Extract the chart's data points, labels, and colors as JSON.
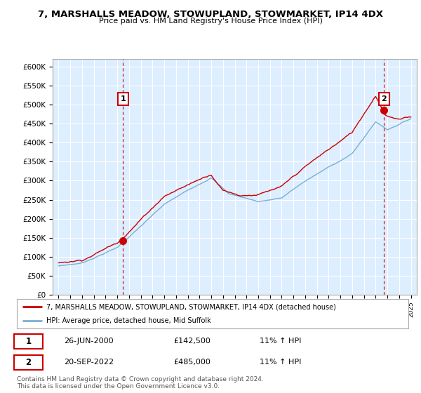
{
  "title": "7, MARSHALLS MEADOW, STOWUPLAND, STOWMARKET, IP14 4DX",
  "subtitle": "Price paid vs. HM Land Registry's House Price Index (HPI)",
  "legend_line1": "7, MARSHALLS MEADOW, STOWUPLAND, STOWMARKET, IP14 4DX (detached house)",
  "legend_line2": "HPI: Average price, detached house, Mid Suffolk",
  "row1_date": "26-JUN-2000",
  "row1_price": "£142,500",
  "row1_hpi": "11% ↑ HPI",
  "row2_date": "20-SEP-2022",
  "row2_price": "£485,000",
  "row2_hpi": "11% ↑ HPI",
  "footer": "Contains HM Land Registry data © Crown copyright and database right 2024.\nThis data is licensed under the Open Government Licence v3.0.",
  "ylim_min": 0,
  "ylim_max": 620000,
  "sale1_year": 2000.5,
  "sale1_price": 142500,
  "sale2_year": 2022.72,
  "sale2_price": 485000,
  "red_color": "#cc0000",
  "blue_color": "#7ab0d4",
  "bg_color": "#ddeeff",
  "grid_color": "#ffffff",
  "dashed_color": "#cc0000"
}
